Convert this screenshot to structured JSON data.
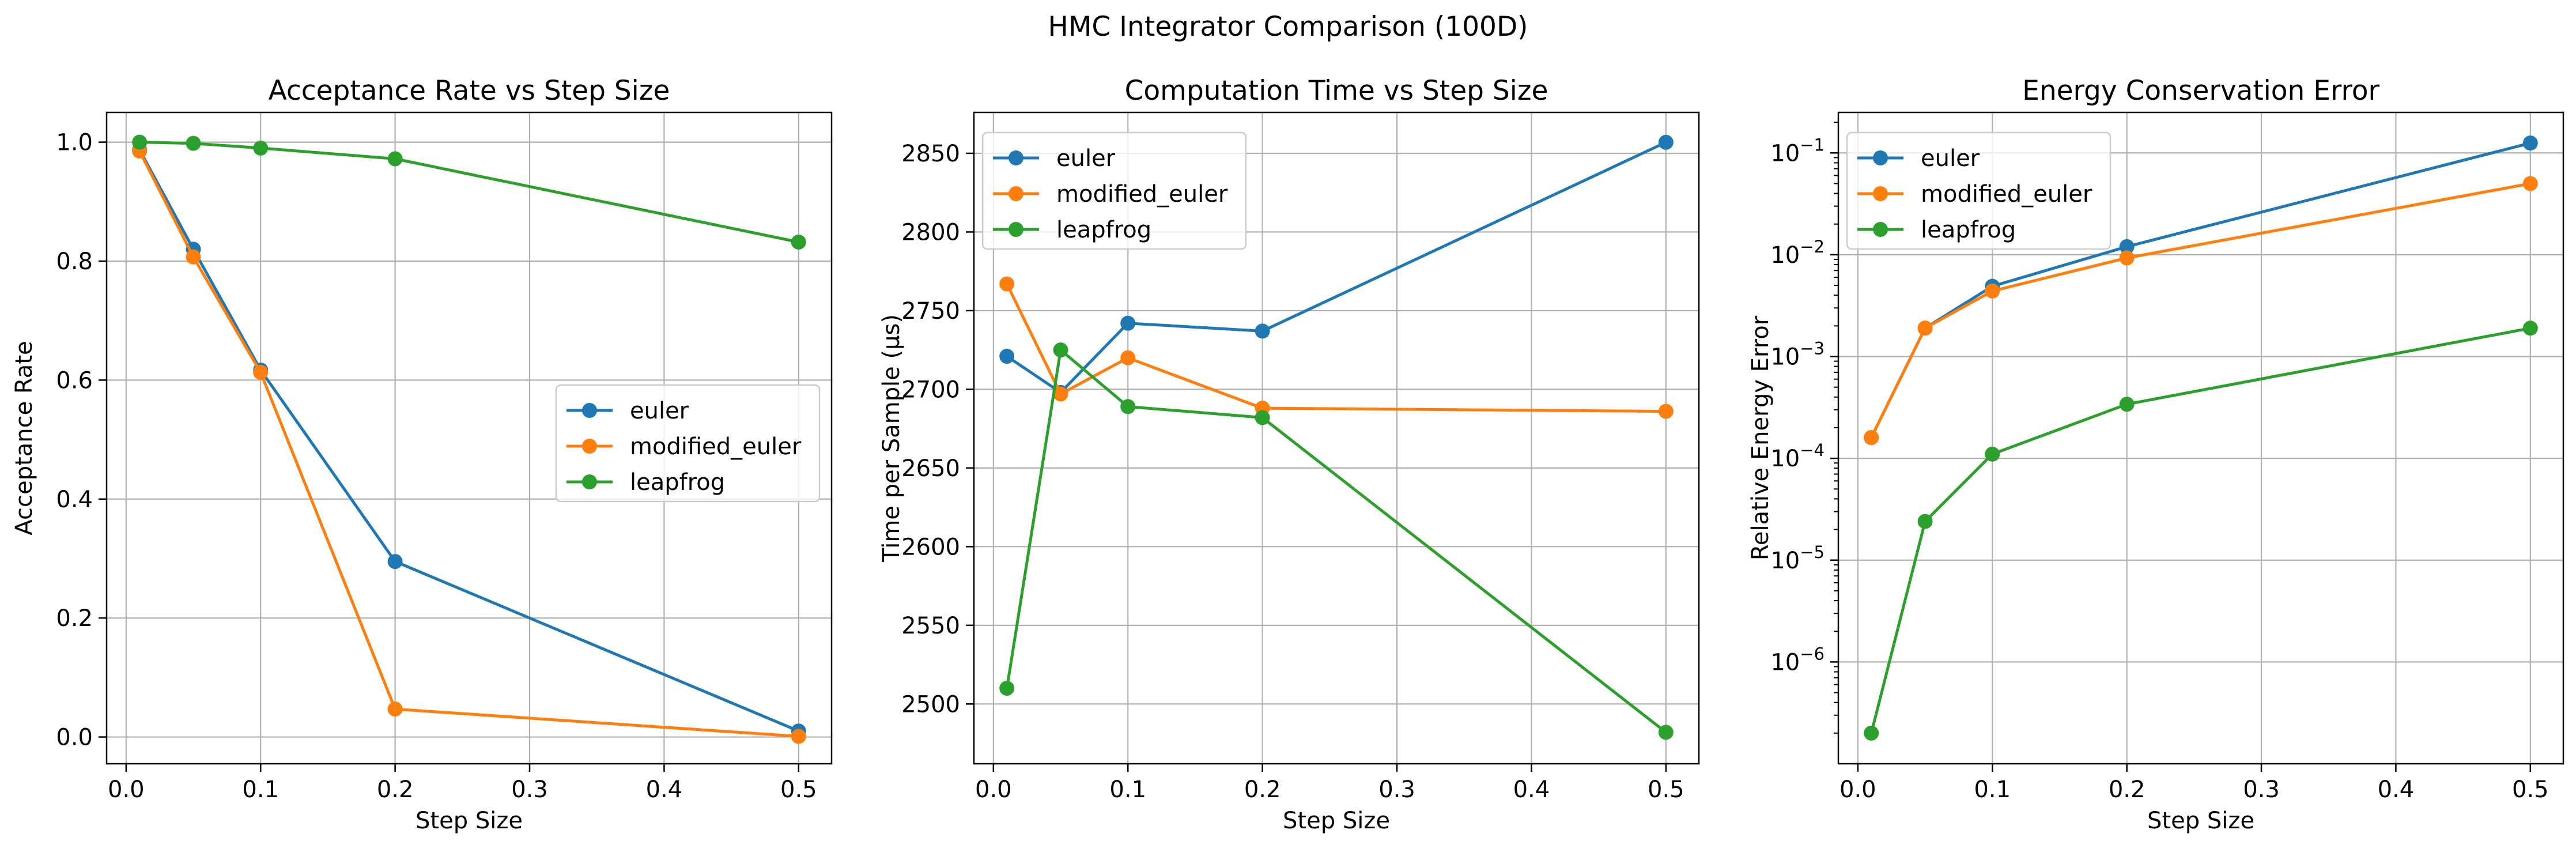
{
  "figure": {
    "title": "HMC Integrator Comparison (100D)"
  },
  "colors": {
    "euler": "#1f77b4",
    "modified_euler": "#ff7f0e",
    "leapfrog": "#2ca02c",
    "grid": "#b0b0b0"
  },
  "chart_data": [
    {
      "type": "line",
      "title": "Acceptance Rate vs Step Size",
      "xlabel": "Step Size",
      "ylabel": "Acceptance Rate",
      "xlim": [
        -0.0145,
        0.5245
      ],
      "ylim": [
        -0.045,
        1.05
      ],
      "yscale": "linear",
      "grid": true,
      "legend": "center right",
      "x": [
        0.01,
        0.05,
        0.1,
        0.2,
        0.5
      ],
      "xticks": [
        0.0,
        0.1,
        0.2,
        0.3,
        0.4,
        0.5
      ],
      "xtick_labels": [
        "0.0",
        "0.1",
        "0.2",
        "0.3",
        "0.4",
        "0.5"
      ],
      "yticks": [
        0.0,
        0.2,
        0.4,
        0.6,
        0.8,
        1.0
      ],
      "ytick_labels": [
        "0.0",
        "0.2",
        "0.4",
        "0.6",
        "0.8",
        "1.0"
      ],
      "series": [
        {
          "name": "euler",
          "values": [
            0.987,
            0.82,
            0.617,
            0.295,
            0.01
          ]
        },
        {
          "name": "modified_euler",
          "values": [
            0.985,
            0.807,
            0.613,
            0.047,
            0.001
          ]
        },
        {
          "name": "leapfrog",
          "values": [
            1.0,
            0.998,
            0.99,
            0.972,
            0.832
          ]
        }
      ]
    },
    {
      "type": "line",
      "title": "Computation Time vs Step Size",
      "xlabel": "Step Size",
      "ylabel": "Time per Sample (μs)",
      "xlim": [
        -0.0145,
        0.5245
      ],
      "ylim": [
        2462,
        2876
      ],
      "yscale": "linear",
      "grid": true,
      "legend": "upper left",
      "x": [
        0.01,
        0.05,
        0.1,
        0.2,
        0.5
      ],
      "xticks": [
        0.0,
        0.1,
        0.2,
        0.3,
        0.4,
        0.5
      ],
      "xtick_labels": [
        "0.0",
        "0.1",
        "0.2",
        "0.3",
        "0.4",
        "0.5"
      ],
      "yticks": [
        2500,
        2550,
        2600,
        2650,
        2700,
        2750,
        2800,
        2850
      ],
      "ytick_labels": [
        "2500",
        "2550",
        "2600",
        "2650",
        "2700",
        "2750",
        "2800",
        "2850"
      ],
      "series": [
        {
          "name": "euler",
          "values": [
            2721,
            2698,
            2742,
            2737,
            2857
          ]
        },
        {
          "name": "modified_euler",
          "values": [
            2767,
            2697,
            2720,
            2688,
            2686
          ]
        },
        {
          "name": "leapfrog",
          "values": [
            2510,
            2725,
            2689,
            2682,
            2482
          ]
        }
      ]
    },
    {
      "type": "line",
      "title": "Energy Conservation Error",
      "xlabel": "Step Size",
      "ylabel": "Relative Energy Error",
      "xlim": [
        -0.0145,
        0.5245
      ],
      "ylim": [
        1e-07,
        0.25
      ],
      "yscale": "log",
      "grid": true,
      "legend": "upper left",
      "x": [
        0.01,
        0.05,
        0.1,
        0.2,
        0.5
      ],
      "xticks": [
        0.0,
        0.1,
        0.2,
        0.3,
        0.4,
        0.5
      ],
      "xtick_labels": [
        "0.0",
        "0.1",
        "0.2",
        "0.3",
        "0.4",
        "0.5"
      ],
      "yticks": [
        1e-06,
        1e-05,
        0.0001,
        0.001,
        0.01,
        0.1
      ],
      "ytick_labels": [
        {
          "base": "10",
          "exp": "−6"
        },
        {
          "base": "10",
          "exp": "−5"
        },
        {
          "base": "10",
          "exp": "−4"
        },
        {
          "base": "10",
          "exp": "−3"
        },
        {
          "base": "10",
          "exp": "−2"
        },
        {
          "base": "10",
          "exp": "−1"
        }
      ],
      "series": [
        {
          "name": "euler",
          "values": [
            0.00016,
            0.0019,
            0.0049,
            0.012,
            0.125
          ]
        },
        {
          "name": "modified_euler",
          "values": [
            0.00016,
            0.0019,
            0.0044,
            0.0093,
            0.05
          ]
        },
        {
          "name": "leapfrog",
          "values": [
            2e-07,
            2.4e-05,
            0.00011,
            0.00034,
            0.0019
          ]
        }
      ]
    }
  ]
}
